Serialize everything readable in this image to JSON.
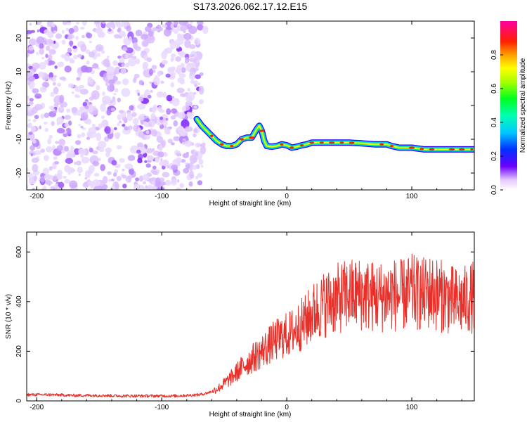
{
  "title": "S173.2026.062.17.12.E15",
  "chart_data": [
    {
      "type": "heatmap",
      "panel": "spectrogram",
      "xlabel": "Height of straight line (km)",
      "ylabel": "Frequency (Hz)",
      "xlim": [
        -208,
        150
      ],
      "ylim": [
        -25,
        25
      ],
      "xticks": [
        -200,
        -100,
        0,
        100
      ],
      "yticks": [
        -20,
        -10,
        0,
        10,
        20
      ],
      "noise_region_x": [
        -208,
        -68
      ],
      "signal_track": {
        "x": [
          -72,
          -68,
          -64,
          -60,
          -56,
          -52,
          -48,
          -44,
          -40,
          -36,
          -32,
          -28,
          -24,
          -22,
          -20,
          -18,
          -16,
          -12,
          -8,
          -4,
          0,
          4,
          8,
          12,
          16,
          20,
          30,
          40,
          50,
          60,
          70,
          80,
          84,
          90,
          100,
          110,
          120,
          130,
          140,
          150
        ],
        "frequency": [
          -4,
          -6,
          -7.5,
          -9,
          -10.5,
          -11.5,
          -12,
          -12,
          -11.5,
          -10,
          -9.5,
          -9.5,
          -7,
          -6,
          -7.5,
          -10.5,
          -12,
          -12.2,
          -12,
          -11.5,
          -11.8,
          -12.5,
          -12.2,
          -11.8,
          -11.5,
          -11,
          -11,
          -11,
          -11,
          -11.2,
          -11.5,
          -11.5,
          -12,
          -12.5,
          -12.5,
          -13,
          -13,
          -13,
          -13,
          -13
        ]
      },
      "colorbar": {
        "label": "Normalized spectral amplitude",
        "range": [
          0,
          1
        ],
        "ticks": [
          "0.0",
          "0.2",
          "0.4",
          "0.6",
          "0.8"
        ]
      }
    },
    {
      "type": "line",
      "panel": "snr",
      "xlabel": "Height of straight line (km)",
      "ylabel": "SNR (10 * v/v)",
      "xlim": [
        -208,
        150
      ],
      "ylim": [
        0,
        680
      ],
      "xticks": [
        -200,
        -100,
        0,
        100
      ],
      "yticks": [
        0,
        200,
        400,
        600
      ],
      "series": [
        {
          "name": "SNR",
          "color": "#e8302a",
          "x": [
            -208,
            -190,
            -170,
            -150,
            -130,
            -110,
            -90,
            -80,
            -70,
            -65,
            -60,
            -55,
            -50,
            -45,
            -40,
            -35,
            -30,
            -25,
            -20,
            -15,
            -10,
            -5,
            0,
            5,
            10,
            15,
            20,
            25,
            30,
            35,
            40,
            45,
            50,
            55,
            60,
            65,
            70,
            75,
            80,
            85,
            90,
            95,
            100,
            105,
            110,
            115,
            120,
            125,
            130,
            135,
            140,
            145,
            150
          ],
          "values": [
            25,
            25,
            22,
            22,
            20,
            20,
            20,
            22,
            25,
            30,
            38,
            50,
            70,
            90,
            115,
            140,
            160,
            180,
            200,
            220,
            240,
            255,
            265,
            280,
            300,
            320,
            350,
            370,
            390,
            400,
            410,
            420,
            425,
            430,
            430,
            425,
            420,
            420,
            425,
            430,
            420,
            430,
            440,
            430,
            430,
            440,
            430,
            420,
            410,
            400,
            400,
            410,
            420
          ]
        }
      ]
    }
  ]
}
